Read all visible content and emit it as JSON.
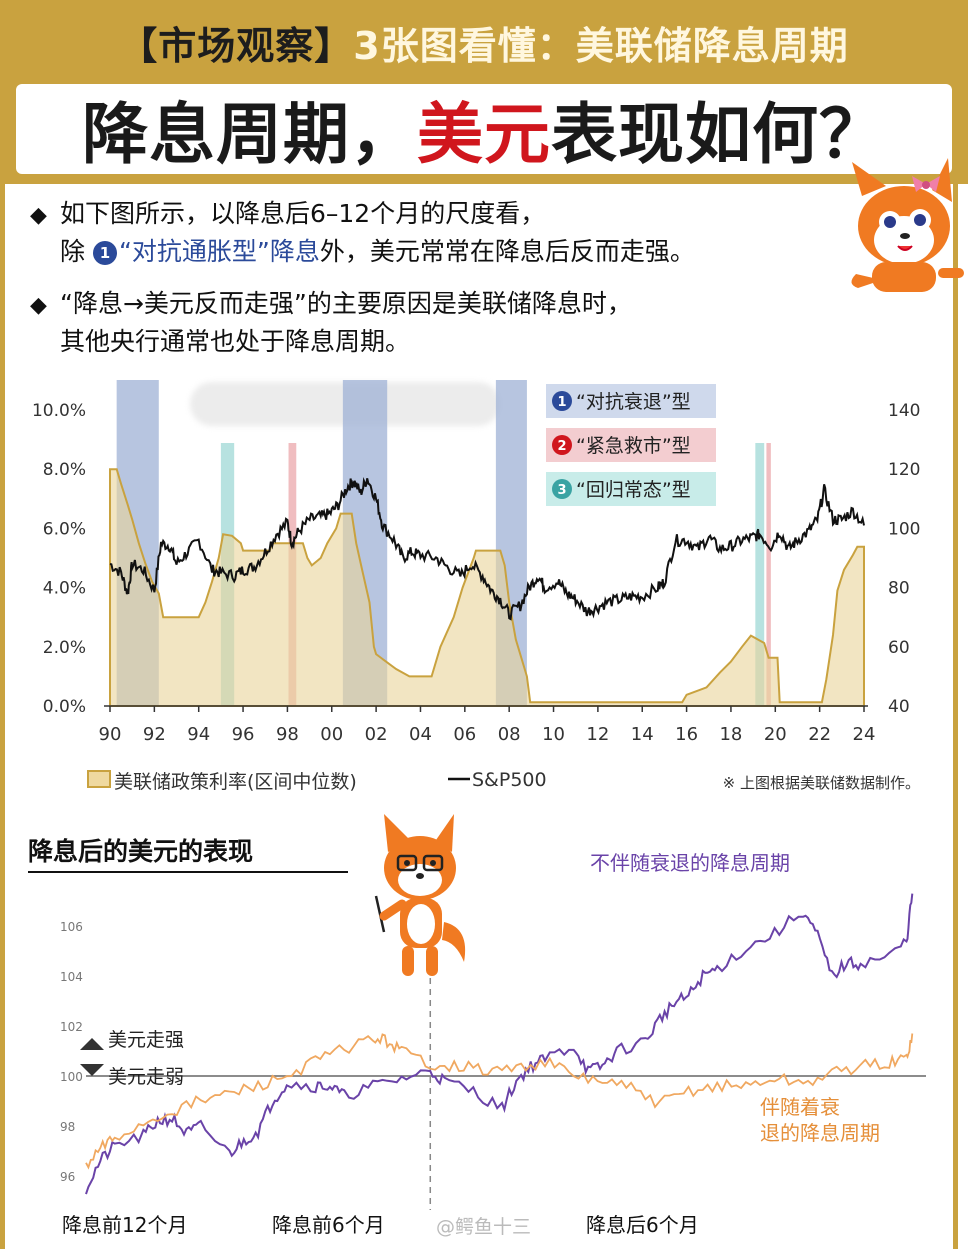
{
  "header": {
    "kicker_left": "【市场观察】",
    "kicker_right": "3张图看懂：美联储降息周期",
    "title_part1": "降息周期，",
    "title_red": "美元",
    "title_part2": "表现如何？"
  },
  "intro": {
    "bullet1_line1": "如下图所示，以降息后6–12个月的尺度看，",
    "bullet1_pre": "除 ",
    "bullet1_num": "1",
    "bullet1_blue": "“对抗通胀型”降息",
    "bullet1_post": "外，美元常常在降息后反而走强。",
    "bullet2_line1": "“降息→美元反而走强”的主要原因是美联储降息时，",
    "bullet2_line2": "其他央行通常也处于降息周期。"
  },
  "chart_data": [
    {
      "type": "area",
      "yticks_left": [
        "10.0%",
        "8.0%",
        "6.0%",
        "4.0%",
        "2.0%",
        "0.0%"
      ],
      "yticks_right": [
        "140",
        "120",
        "100",
        "80",
        "60",
        "40"
      ],
      "xticks": [
        "90",
        "92",
        "94",
        "96",
        "98",
        "00",
        "02",
        "04",
        "06",
        "08",
        "10",
        "12",
        "14",
        "16",
        "18",
        "20",
        "22",
        "24"
      ],
      "ylim_left": [
        0,
        10
      ],
      "ylim_right": [
        40,
        140
      ],
      "xlim": [
        1990,
        2024
      ],
      "legend": {
        "box_labels": [
          "“对抗衰退”型",
          "“紧急救市”型",
          "“回归常态”型"
        ],
        "box_nums": [
          "1",
          "2",
          "3"
        ],
        "box_colors": [
          "#2b4a9a",
          "#d0161d",
          "#3aa3a3"
        ],
        "series1": "美联储政策利率(区间中位数)",
        "series2": "S&P500"
      },
      "note": "※ 上图根据美联储数据制作。",
      "shaded_periods": [
        {
          "kind": 1,
          "start": 1990.3,
          "end": 1992.2
        },
        {
          "kind": 3,
          "start": 1995.0,
          "end": 1995.6
        },
        {
          "kind": 2,
          "start": 1998.05,
          "end": 1998.4
        },
        {
          "kind": 1,
          "start": 2000.5,
          "end": 2002.5
        },
        {
          "kind": 1,
          "start": 2007.4,
          "end": 2008.8
        },
        {
          "kind": 3,
          "start": 2019.1,
          "end": 2019.5
        },
        {
          "kind": 2,
          "start": 2019.6,
          "end": 2019.8
        }
      ],
      "fed_rate": {
        "name": "美联储政策利率(区间中位数)",
        "points": [
          [
            1990,
            8.0
          ],
          [
            1990.3,
            8.0
          ],
          [
            1990.5,
            7.5
          ],
          [
            1990.8,
            6.8
          ],
          [
            1991,
            6.3
          ],
          [
            1991.3,
            5.5
          ],
          [
            1991.6,
            4.8
          ],
          [
            1991.9,
            4.2
          ],
          [
            1992.2,
            3.8
          ],
          [
            1992.4,
            3.0
          ],
          [
            1994.0,
            3.0
          ],
          [
            1994.3,
            3.5
          ],
          [
            1994.6,
            4.2
          ],
          [
            1994.9,
            5.0
          ],
          [
            1995.1,
            5.8
          ],
          [
            1995.5,
            5.75
          ],
          [
            1995.9,
            5.5
          ],
          [
            1996.0,
            5.25
          ],
          [
            1997.2,
            5.25
          ],
          [
            1997.3,
            5.5
          ],
          [
            1998.7,
            5.5
          ],
          [
            1998.9,
            5.0
          ],
          [
            1999.1,
            4.75
          ],
          [
            1999.5,
            5.0
          ],
          [
            1999.8,
            5.5
          ],
          [
            2000.2,
            6.0
          ],
          [
            2000.4,
            6.5
          ],
          [
            2000.9,
            6.5
          ],
          [
            2001.1,
            5.5
          ],
          [
            2001.4,
            4.5
          ],
          [
            2001.7,
            3.5
          ],
          [
            2001.9,
            2.0
          ],
          [
            2002.0,
            1.75
          ],
          [
            2002.9,
            1.25
          ],
          [
            2003.5,
            1.0
          ],
          [
            2004.5,
            1.0
          ],
          [
            2004.9,
            2.0
          ],
          [
            2005.5,
            3.0
          ],
          [
            2005.9,
            4.0
          ],
          [
            2006.4,
            5.0
          ],
          [
            2006.5,
            5.25
          ],
          [
            2007.6,
            5.25
          ],
          [
            2007.8,
            4.75
          ],
          [
            2008.0,
            3.5
          ],
          [
            2008.3,
            2.25
          ],
          [
            2008.8,
            1.0
          ],
          [
            2008.95,
            0.13
          ],
          [
            2015.8,
            0.13
          ],
          [
            2016.0,
            0.38
          ],
          [
            2016.9,
            0.63
          ],
          [
            2017.5,
            1.13
          ],
          [
            2018.0,
            1.5
          ],
          [
            2018.5,
            2.0
          ],
          [
            2018.9,
            2.38
          ],
          [
            2019.5,
            2.13
          ],
          [
            2019.7,
            1.63
          ],
          [
            2020.1,
            1.63
          ],
          [
            2020.2,
            0.13
          ],
          [
            2022.1,
            0.13
          ],
          [
            2022.3,
            0.9
          ],
          [
            2022.6,
            2.4
          ],
          [
            2022.8,
            3.9
          ],
          [
            2023.1,
            4.6
          ],
          [
            2023.5,
            5.1
          ],
          [
            2023.7,
            5.38
          ],
          [
            2024.0,
            5.38
          ]
        ]
      },
      "sp500": {
        "name": "S&P500",
        "points": [
          [
            1990,
            88
          ],
          [
            1990.5,
            85
          ],
          [
            1990.8,
            78
          ],
          [
            1991.0,
            88
          ],
          [
            1991.5,
            86
          ],
          [
            1992.0,
            79
          ],
          [
            1992.3,
            95
          ],
          [
            1992.7,
            94
          ],
          [
            1993.0,
            88
          ],
          [
            1993.5,
            92
          ],
          [
            1994.0,
            96
          ],
          [
            1994.6,
            86
          ],
          [
            1995.0,
            85
          ],
          [
            1995.6,
            84
          ],
          [
            1996.0,
            86
          ],
          [
            1996.5,
            87
          ],
          [
            1997.0,
            92
          ],
          [
            1997.5,
            98
          ],
          [
            1998.0,
            102
          ],
          [
            1998.2,
            95
          ],
          [
            1998.5,
            99
          ],
          [
            1999.0,
            103
          ],
          [
            1999.5,
            104
          ],
          [
            1999.9,
            105
          ],
          [
            2000.3,
            108
          ],
          [
            2000.7,
            114
          ],
          [
            2001.0,
            116
          ],
          [
            2001.3,
            112
          ],
          [
            2001.6,
            117
          ],
          [
            2002.0,
            110
          ],
          [
            2002.3,
            101
          ],
          [
            2002.8,
            96
          ],
          [
            2003.2,
            90
          ],
          [
            2003.6,
            92
          ],
          [
            2004.0,
            91
          ],
          [
            2004.7,
            90
          ],
          [
            2005.2,
            87
          ],
          [
            2005.8,
            84
          ],
          [
            2006.3,
            88
          ],
          [
            2006.8,
            84
          ],
          [
            2007.2,
            79
          ],
          [
            2007.6,
            76
          ],
          [
            2008.0,
            71
          ],
          [
            2008.5,
            74
          ],
          [
            2008.9,
            80
          ],
          [
            2009.3,
            84
          ],
          [
            2009.6,
            80
          ],
          [
            2010.2,
            82
          ],
          [
            2010.6,
            78
          ],
          [
            2011.0,
            76
          ],
          [
            2011.5,
            72
          ],
          [
            2011.9,
            73
          ],
          [
            2012.4,
            75
          ],
          [
            2013.0,
            76
          ],
          [
            2013.5,
            77
          ],
          [
            2014.0,
            77
          ],
          [
            2014.7,
            80
          ],
          [
            2015.0,
            82
          ],
          [
            2015.5,
            96
          ],
          [
            2016.0,
            96
          ],
          [
            2016.5,
            93
          ],
          [
            2017.0,
            97
          ],
          [
            2017.5,
            93
          ],
          [
            2018.0,
            94
          ],
          [
            2018.5,
            96
          ],
          [
            2019.0,
            97
          ],
          [
            2019.3,
            98
          ],
          [
            2019.8,
            94
          ],
          [
            2020.2,
            99
          ],
          [
            2020.6,
            93
          ],
          [
            2021.0,
            96
          ],
          [
            2021.5,
            99
          ],
          [
            2021.9,
            103
          ],
          [
            2022.2,
            113
          ],
          [
            2022.6,
            103
          ],
          [
            2023.0,
            103
          ],
          [
            2023.5,
            106
          ],
          [
            2024.0,
            101
          ]
        ]
      }
    },
    {
      "type": "line",
      "title": "降息后的美元的表现",
      "yticks": [
        "106",
        "104",
        "102",
        "100",
        "98",
        "96"
      ],
      "ylim": [
        95,
        107
      ],
      "xticks": [
        "降息前12个月",
        "降息前6个月",
        "降息后6个月"
      ],
      "x_range_months": [
        -12,
        12
      ],
      "strong_label": "美元走强",
      "weak_label": "美元走弱",
      "series": [
        {
          "name": "不伴随衰退的降息周期",
          "color": "#6a43a8",
          "points": [
            [
              -12,
              95.5
            ],
            [
              -11.5,
              96.6
            ],
            [
              -11,
              97.2
            ],
            [
              -10,
              97.6
            ],
            [
              -9.5,
              98.2
            ],
            [
              -9,
              98.3
            ],
            [
              -8.5,
              97.7
            ],
            [
              -8,
              98.0
            ],
            [
              -7,
              96.9
            ],
            [
              -6.5,
              97.4
            ],
            [
              -6,
              97.8
            ],
            [
              -5.5,
              99.0
            ],
            [
              -5,
              99.7
            ],
            [
              -4,
              99.6
            ],
            [
              -3.5,
              99.6
            ],
            [
              -3,
              99.2
            ],
            [
              -2,
              99.6
            ],
            [
              -1,
              99.9
            ],
            [
              0,
              100.2
            ],
            [
              0.5,
              99.8
            ],
            [
              1.5,
              99.4
            ],
            [
              2.5,
              98.7
            ],
            [
              3,
              99.8
            ],
            [
              3.5,
              100.4
            ],
            [
              4,
              100.7
            ],
            [
              5,
              101.2
            ],
            [
              5.5,
              100.2
            ],
            [
              6,
              100.4
            ],
            [
              6.5,
              101.0
            ],
            [
              7.5,
              101.4
            ],
            [
              8,
              102.3
            ],
            [
              8.5,
              102.9
            ],
            [
              9,
              103.2
            ],
            [
              9.5,
              104.0
            ],
            [
              10,
              104.3
            ],
            [
              11,
              105.1
            ],
            [
              12,
              105.7
            ],
            [
              13,
              106.6
            ],
            [
              13.5,
              105.6
            ],
            [
              14,
              104.0
            ],
            [
              14.5,
              104.5
            ],
            [
              15,
              104.5
            ],
            [
              16,
              104.8
            ],
            [
              16.6,
              105.4
            ],
            [
              16.8,
              107.3
            ]
          ]
        },
        {
          "name": "伴随着衰退的降息周期",
          "color": "#f0a860",
          "points": [
            [
              -12,
              96.3
            ],
            [
              -11.5,
              97.1
            ],
            [
              -11,
              97.5
            ],
            [
              -10,
              98.1
            ],
            [
              -9,
              98.6
            ],
            [
              -8,
              99.0
            ],
            [
              -7,
              99.3
            ],
            [
              -6,
              99.6
            ],
            [
              -5,
              100.0
            ],
            [
              -4,
              100.6
            ],
            [
              -3,
              101.1
            ],
            [
              -2,
              101.5
            ],
            [
              -1.5,
              101.4
            ],
            [
              -1,
              101.0
            ],
            [
              0,
              100.5
            ],
            [
              1,
              100.4
            ],
            [
              2,
              100.2
            ],
            [
              3,
              100.3
            ],
            [
              4,
              100.6
            ],
            [
              5,
              100.0
            ],
            [
              6,
              99.8
            ],
            [
              7,
              99.5
            ],
            [
              8,
              98.9
            ],
            [
              9,
              99.4
            ],
            [
              10,
              99.6
            ],
            [
              11,
              99.6
            ],
            [
              12,
              99.9
            ],
            [
              13,
              99.7
            ],
            [
              14,
              100.1
            ],
            [
              15,
              100.4
            ],
            [
              16,
              100.5
            ],
            [
              16.6,
              100.7
            ],
            [
              16.8,
              101.7
            ]
          ]
        }
      ]
    }
  ],
  "watermark": "@鳄鱼十三"
}
